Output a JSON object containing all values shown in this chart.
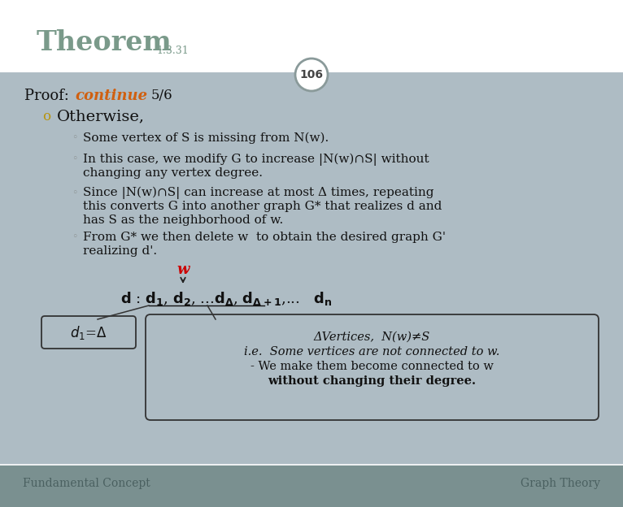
{
  "bg_color": "#aebcc4",
  "header_bg": "#ffffff",
  "footer_band_color": "#7a9090",
  "title_text": "Theorem",
  "title_subscript": "1.3.31",
  "title_color": "#7a9a8a",
  "circle_num": "106",
  "circle_bg": "#ffffff",
  "circle_border": "#8a9a9a",
  "proof_label": "Proof: ",
  "continue_text": "continue",
  "continue_color": "#d06010",
  "slide_num": "5/6",
  "otherwise_bullet": "o",
  "otherwise_text": "Otherwise,",
  "otherwise_color": "#b8940a",
  "bullet_color": "#8a9090",
  "bullet1": "Some vertex of S is missing from N(w).",
  "bullet2_1": "In this case, we modify G to increase |N(w)∩S| without",
  "bullet2_2": "changing any vertex degree.",
  "bullet3_1": "Since |N(w)∩S| can increase at most Δ times, repeating",
  "bullet3_2": "this converts G into another graph G* that realizes d and",
  "bullet3_3": "has S as the neighborhood of w.",
  "bullet4_1": "From G* we then delete w  to obtain the desired graph G'",
  "bullet4_2": "realizing d'.",
  "w_label": "w",
  "w_color": "#cc0000",
  "box2_line1": "ΔVertices,  N(w)≠S",
  "box2_line2": "i.e.  Some vertices are not connected to w.",
  "box2_line3": "- We make them become connected to w",
  "box2_line4": "without changing their degree.",
  "footer_left": "Fundamental Concept",
  "footer_right": "Graph Theory",
  "footer_color": "#4a6060"
}
